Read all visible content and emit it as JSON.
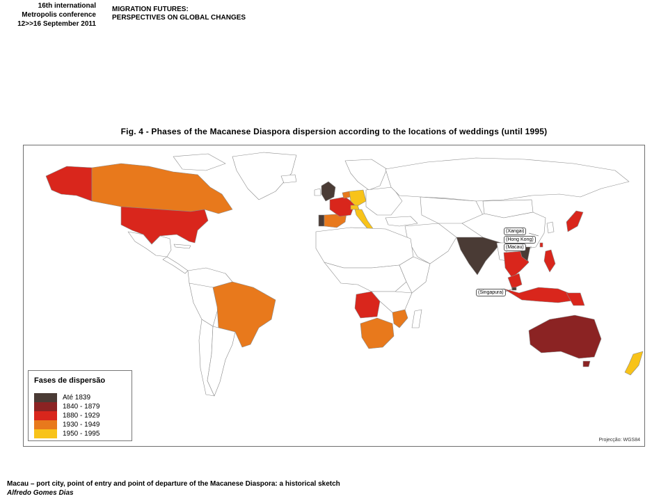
{
  "header": {
    "conference_lines": [
      "16th international",
      "Metropolis conference",
      "12>>16 September 2011"
    ],
    "theme_lines": [
      "MIGRATION FUTURES:",
      "PERSPECTIVES ON GLOBAL CHANGES"
    ]
  },
  "figure": {
    "title": "Fig. 4 - Phases of the Macanese Diaspora dispersion according to the locations of weddings (until 1995)"
  },
  "map": {
    "legend": {
      "title": "Fases de dispersão",
      "items": [
        {
          "label": "Até 1839",
          "color": "#4a3b35"
        },
        {
          "label": "1840 - 1879",
          "color": "#8b2323"
        },
        {
          "label": "1880 - 1929",
          "color": "#d9261c"
        },
        {
          "label": "1930 - 1949",
          "color": "#e8791c"
        },
        {
          "label": "1950 - 1995",
          "color": "#f8c319"
        }
      ]
    },
    "projection": "Projecção: WGS84",
    "place_labels": {
      "xangai": "(Xangai)",
      "hong_kong": "(Hong Kong)",
      "macau": "(Macau)",
      "singapura": "(Singapura)"
    },
    "colors": {
      "land_base": "#ffffff",
      "border": "#8a8a8a"
    }
  },
  "footer": {
    "title": "Macau – port city, point of entry and point of departure of the Macanese Diaspora: a historical sketch",
    "author": "Alfredo Gomes Dias"
  }
}
